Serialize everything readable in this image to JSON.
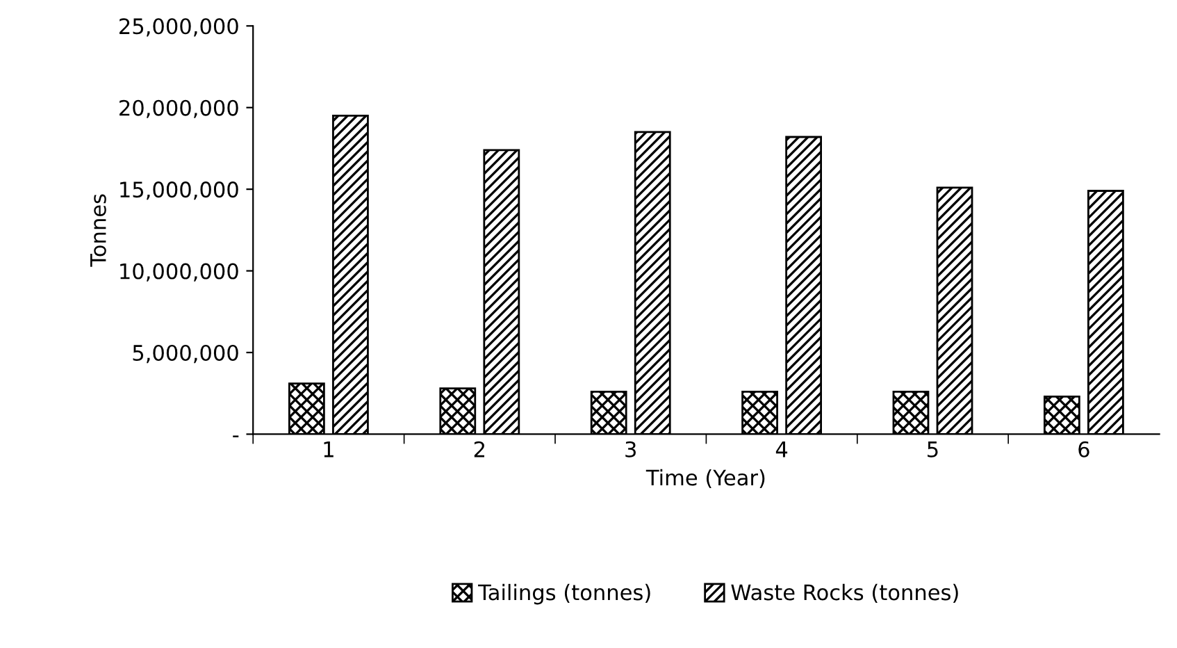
{
  "chart_data": {
    "type": "bar",
    "xlabel": "Time (Year)",
    "ylabel": "Tonnes",
    "categories": [
      "1",
      "2",
      "3",
      "4",
      "5",
      "6"
    ],
    "series": [
      {
        "name": "Tailings (tonnes)",
        "color": "#000000",
        "values": [
          3100000,
          2800000,
          2600000,
          2600000,
          2600000,
          2300000
        ]
      },
      {
        "name": "Waste Rocks (tonnes)",
        "color": "#000000",
        "values": [
          19500000,
          17400000,
          18500000,
          18200000,
          15100000,
          14900000
        ]
      }
    ],
    "ylim": [
      0,
      25000000
    ],
    "yticks": [
      {
        "value": 0,
        "label": "-"
      },
      {
        "value": 5000000,
        "label": "5,000,000"
      },
      {
        "value": 10000000,
        "label": "10,000,000"
      },
      {
        "value": 15000000,
        "label": "15,000,000"
      },
      {
        "value": 20000000,
        "label": "20,000,000"
      },
      {
        "value": 25000000,
        "label": "25,000,000"
      }
    ],
    "grid": false,
    "legend": "bottom"
  }
}
